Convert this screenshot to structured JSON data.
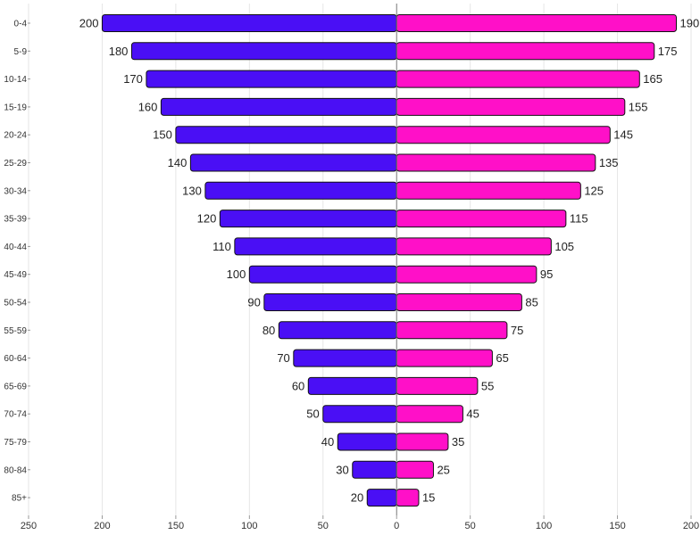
{
  "chart_data": {
    "type": "bar",
    "orientation": "horizontal",
    "layout": "population-pyramid",
    "categories": [
      "0-4",
      "5-9",
      "10-14",
      "15-19",
      "20-24",
      "25-29",
      "30-34",
      "35-39",
      "40-44",
      "45-49",
      "50-54",
      "55-59",
      "60-64",
      "65-69",
      "70-74",
      "75-79",
      "80-84",
      "85+"
    ],
    "series": [
      {
        "side": "left",
        "color": "#4a0ff5",
        "values": [
          200,
          180,
          170,
          160,
          150,
          140,
          130,
          120,
          110,
          100,
          90,
          80,
          70,
          60,
          50,
          40,
          30,
          20
        ]
      },
      {
        "side": "right",
        "color": "#ff10c8",
        "values": [
          190,
          175,
          165,
          155,
          145,
          135,
          125,
          115,
          105,
          95,
          85,
          75,
          65,
          55,
          45,
          35,
          25,
          15
        ]
      }
    ],
    "xlim": [
      -250,
      200
    ],
    "x_ticks": [
      -250,
      -200,
      -150,
      -100,
      -50,
      0,
      50,
      100,
      150,
      200
    ],
    "x_tick_labels": [
      "250",
      "200",
      "150",
      "100",
      "50",
      "0",
      "50",
      "100",
      "150",
      "200"
    ],
    "title": "",
    "xlabel": "",
    "ylabel": "",
    "grid": "vertical",
    "data_labels": true
  }
}
